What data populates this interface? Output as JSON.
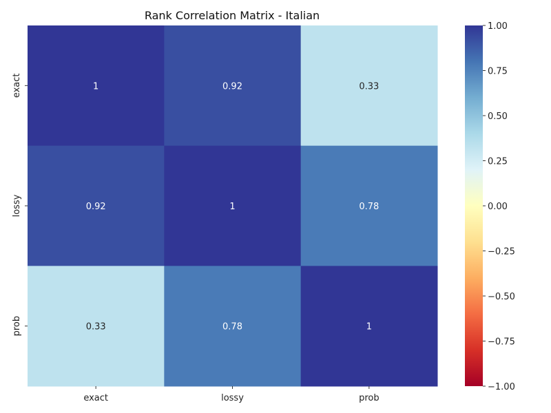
{
  "chart_data": {
    "type": "heatmap",
    "title": "Rank Correlation Matrix - Italian",
    "xlabel": "",
    "ylabel": "",
    "x_categories": [
      "exact",
      "lossy",
      "prob"
    ],
    "y_categories": [
      "exact",
      "lossy",
      "prob"
    ],
    "values": [
      [
        1,
        0.92,
        0.33
      ],
      [
        0.92,
        1,
        0.78
      ],
      [
        0.33,
        0.78,
        1
      ]
    ],
    "annotations": [
      [
        "1",
        "0.92",
        "0.33"
      ],
      [
        "0.92",
        "1",
        "0.78"
      ],
      [
        "0.33",
        "0.78",
        "1"
      ]
    ],
    "colormap": "RdYlBu",
    "vmin": -1,
    "vmax": 1,
    "colorbar_ticks": [
      "1.00",
      "0.75",
      "0.50",
      "0.25",
      "0.00",
      "−0.25",
      "−0.50",
      "−0.75",
      "−1.00"
    ],
    "colorbar_tick_values": [
      1,
      0.75,
      0.5,
      0.25,
      0,
      -0.25,
      -0.5,
      -0.75,
      -1
    ],
    "colorbar_stops": [
      "#a50026",
      "#d73027",
      "#f46d43",
      "#fdae61",
      "#fee090",
      "#ffffbf",
      "#e0f3f8",
      "#abd9e9",
      "#74add1",
      "#4575b4",
      "#313695"
    ]
  }
}
